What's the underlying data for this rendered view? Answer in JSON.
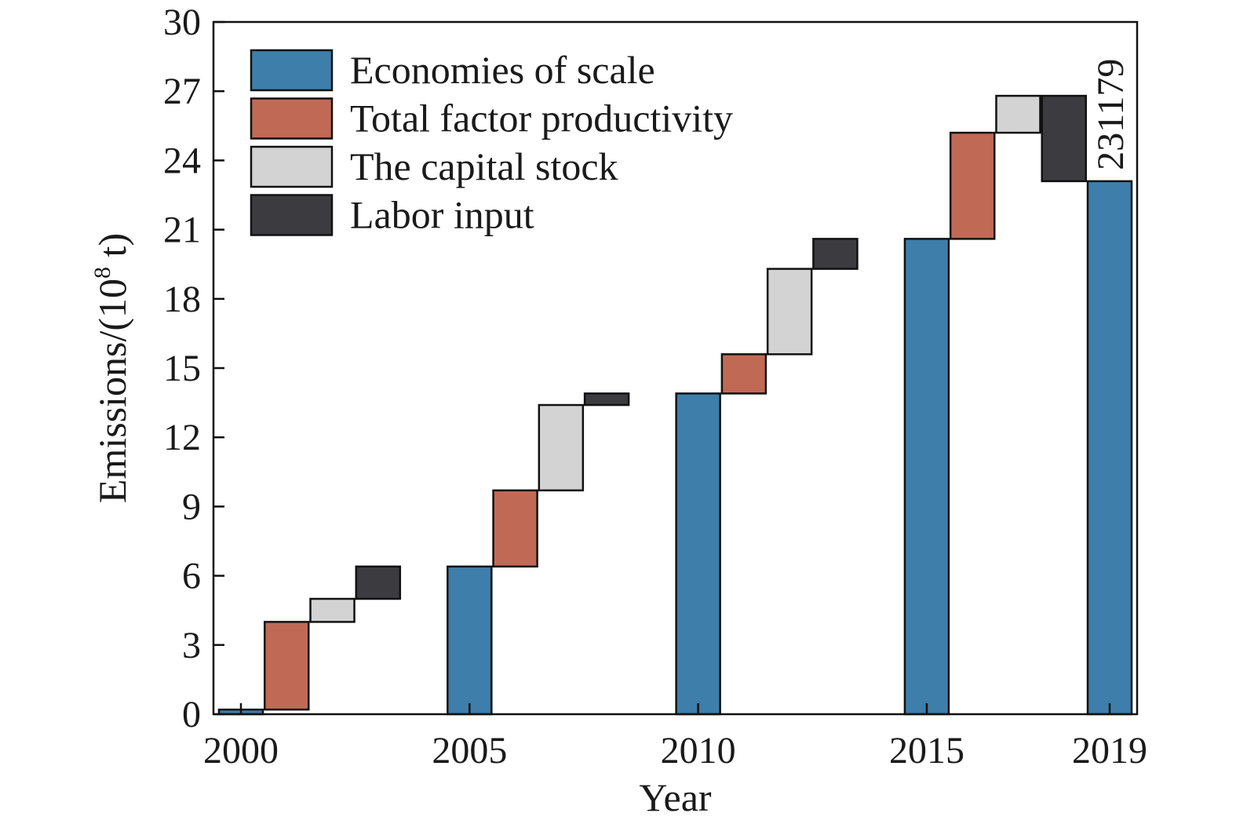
{
  "chart_data": {
    "type": "bar",
    "subtype": "waterfall",
    "xlabel": "Year",
    "ylabel": "Emissions/(10",
    "ylabel_sup": "8",
    "ylabel_tail": " t)",
    "ylim": [
      0,
      30
    ],
    "yticks": [
      0,
      3,
      6,
      9,
      12,
      15,
      18,
      21,
      24,
      27,
      30
    ],
    "xlim": [
      2000,
      2019
    ],
    "xticks": [
      2000,
      2005,
      2010,
      2015,
      2019
    ],
    "grid": false,
    "legend_position": "top-left",
    "colors": {
      "Economies of scale": "#3d7eab",
      "Total factor productivity": "#c06a56",
      "The capital stock": "#d3d3d3",
      "Labor input": "#3c3c40"
    },
    "series": [
      {
        "name": "Economies of scale"
      },
      {
        "name": "Total factor productivity"
      },
      {
        "name": "The capital stock"
      },
      {
        "name": "Labor input"
      }
    ],
    "bars": [
      {
        "x": 2000,
        "series": "Economies of scale",
        "start": 0,
        "end": 0.2
      },
      {
        "x": 2001,
        "series": "Total factor productivity",
        "start": 0.2,
        "end": 4.0
      },
      {
        "x": 2002,
        "series": "The capital stock",
        "start": 4.0,
        "end": 5.0
      },
      {
        "x": 2003,
        "series": "Labor input",
        "start": 5.0,
        "end": 6.4
      },
      {
        "x": 2005,
        "series": "Economies of scale",
        "start": 0,
        "end": 6.4
      },
      {
        "x": 2006,
        "series": "Total factor productivity",
        "start": 6.4,
        "end": 9.7
      },
      {
        "x": 2007,
        "series": "The capital stock",
        "start": 9.7,
        "end": 13.4
      },
      {
        "x": 2008,
        "series": "Labor input",
        "start": 13.4,
        "end": 13.9
      },
      {
        "x": 2010,
        "series": "Economies of scale",
        "start": 0,
        "end": 13.9
      },
      {
        "x": 2011,
        "series": "Total factor productivity",
        "start": 13.9,
        "end": 15.6
      },
      {
        "x": 2012,
        "series": "The capital stock",
        "start": 15.6,
        "end": 19.3
      },
      {
        "x": 2013,
        "series": "Labor input",
        "start": 19.3,
        "end": 20.6
      },
      {
        "x": 2015,
        "series": "Economies of scale",
        "start": 0,
        "end": 20.6
      },
      {
        "x": 2016,
        "series": "Total factor productivity",
        "start": 20.6,
        "end": 25.2
      },
      {
        "x": 2017,
        "series": "The capital stock",
        "start": 25.2,
        "end": 26.8
      },
      {
        "x": 2018,
        "series": "Labor input",
        "start": 23.1,
        "end": 26.8
      },
      {
        "x": 2019,
        "series": "Economies of scale",
        "start": 0,
        "end": 23.1
      }
    ],
    "annotations": [
      {
        "text": "231179",
        "x": 2019,
        "orientation": "vertical"
      }
    ]
  }
}
